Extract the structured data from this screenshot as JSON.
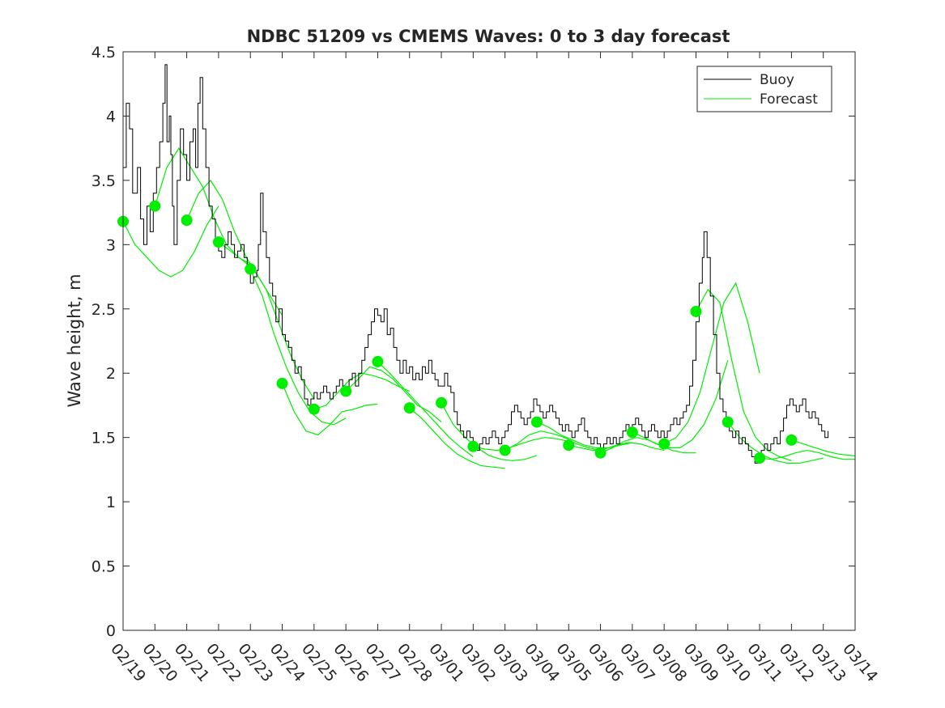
{
  "chart_data": {
    "type": "line",
    "title": "NDBC 51209 vs CMEMS Waves: 0 to 3 day forecast",
    "ylabel": "Wave height, m",
    "xlabel": "",
    "ylim": [
      0,
      4.5
    ],
    "yticks": [
      "0",
      "0.5",
      "1",
      "1.5",
      "2",
      "2.5",
      "3",
      "3.5",
      "4",
      "4.5"
    ],
    "xticks": [
      "02/19",
      "02/20",
      "02/21",
      "02/22",
      "02/23",
      "02/24",
      "02/25",
      "02/26",
      "02/27",
      "02/28",
      "03/01",
      "03/02",
      "03/03",
      "03/04",
      "03/05",
      "03/06",
      "03/07",
      "03/08",
      "03/09",
      "03/10",
      "03/11",
      "03/12",
      "03/13",
      "03/14"
    ],
    "legend": {
      "placement": "top-right",
      "entries": [
        {
          "label": "Buoy",
          "color": "#000000"
        },
        {
          "label": "Forecast",
          "color": "#00ee00"
        }
      ]
    },
    "colors": {
      "buoy": "#000000",
      "forecast": "#00ee00"
    },
    "buoy": [
      [
        0.0,
        3.6
      ],
      [
        0.1,
        4.1
      ],
      [
        0.2,
        3.9
      ],
      [
        0.3,
        3.4
      ],
      [
        0.45,
        3.6
      ],
      [
        0.55,
        3.2
      ],
      [
        0.65,
        3.0
      ],
      [
        0.75,
        3.3
      ],
      [
        0.85,
        3.1
      ],
      [
        0.95,
        3.4
      ],
      [
        1.05,
        3.6
      ],
      [
        1.15,
        3.8
      ],
      [
        1.25,
        4.1
      ],
      [
        1.32,
        4.4
      ],
      [
        1.38,
        3.8
      ],
      [
        1.45,
        4.0
      ],
      [
        1.5,
        3.7
      ],
      [
        1.55,
        3.3
      ],
      [
        1.6,
        3.0
      ],
      [
        1.7,
        3.5
      ],
      [
        1.8,
        3.9
      ],
      [
        1.9,
        3.7
      ],
      [
        2.0,
        3.5
      ],
      [
        2.1,
        3.8
      ],
      [
        2.2,
        3.9
      ],
      [
        2.28,
        3.6
      ],
      [
        2.35,
        4.1
      ],
      [
        2.42,
        4.3
      ],
      [
        2.5,
        3.9
      ],
      [
        2.6,
        3.6
      ],
      [
        2.7,
        3.3
      ],
      [
        2.8,
        3.2
      ],
      [
        2.9,
        3.0
      ],
      [
        3.0,
        2.95
      ],
      [
        3.1,
        2.9
      ],
      [
        3.2,
        3.0
      ],
      [
        3.3,
        3.1
      ],
      [
        3.4,
        3.0
      ],
      [
        3.5,
        2.9
      ],
      [
        3.6,
        2.95
      ],
      [
        3.7,
        3.0
      ],
      [
        3.8,
        2.9
      ],
      [
        3.9,
        2.8
      ],
      [
        4.0,
        2.7
      ],
      [
        4.1,
        2.75
      ],
      [
        4.2,
        2.8
      ],
      [
        4.25,
        3.0
      ],
      [
        4.32,
        3.4
      ],
      [
        4.4,
        3.1
      ],
      [
        4.5,
        2.9
      ],
      [
        4.6,
        2.7
      ],
      [
        4.7,
        2.6
      ],
      [
        4.8,
        2.4
      ],
      [
        4.9,
        2.5
      ],
      [
        5.0,
        2.3
      ],
      [
        5.1,
        2.25
      ],
      [
        5.2,
        2.2
      ],
      [
        5.3,
        2.1
      ],
      [
        5.4,
        2.0
      ],
      [
        5.5,
        2.05
      ],
      [
        5.6,
        1.95
      ],
      [
        5.7,
        1.8
      ],
      [
        5.8,
        1.75
      ],
      [
        5.9,
        1.8
      ],
      [
        6.0,
        1.85
      ],
      [
        6.1,
        1.8
      ],
      [
        6.2,
        1.85
      ],
      [
        6.3,
        1.9
      ],
      [
        6.4,
        1.85
      ],
      [
        6.5,
        1.8
      ],
      [
        6.6,
        1.85
      ],
      [
        6.7,
        1.9
      ],
      [
        6.8,
        1.95
      ],
      [
        6.9,
        1.9
      ],
      [
        7.0,
        1.85
      ],
      [
        7.1,
        1.95
      ],
      [
        7.2,
        2.0
      ],
      [
        7.3,
        1.9
      ],
      [
        7.4,
        2.0
      ],
      [
        7.5,
        2.1
      ],
      [
        7.6,
        2.2
      ],
      [
        7.7,
        2.3
      ],
      [
        7.8,
        2.4
      ],
      [
        7.9,
        2.5
      ],
      [
        8.0,
        2.45
      ],
      [
        8.1,
        2.4
      ],
      [
        8.2,
        2.5
      ],
      [
        8.3,
        2.3
      ],
      [
        8.4,
        2.35
      ],
      [
        8.5,
        2.2
      ],
      [
        8.6,
        2.1
      ],
      [
        8.7,
        2.0
      ],
      [
        8.8,
        2.1
      ],
      [
        8.9,
        2.0
      ],
      [
        9.0,
        2.05
      ],
      [
        9.1,
        1.95
      ],
      [
        9.2,
        2.0
      ],
      [
        9.3,
        1.95
      ],
      [
        9.4,
        2.05
      ],
      [
        9.5,
        2.0
      ],
      [
        9.6,
        2.1
      ],
      [
        9.7,
        2.0
      ],
      [
        9.8,
        1.95
      ],
      [
        9.9,
        1.9
      ],
      [
        10.0,
        1.9
      ],
      [
        10.1,
        2.0
      ],
      [
        10.2,
        1.9
      ],
      [
        10.3,
        1.85
      ],
      [
        10.4,
        1.7
      ],
      [
        10.5,
        1.6
      ],
      [
        10.6,
        1.55
      ],
      [
        10.7,
        1.5
      ],
      [
        10.8,
        1.55
      ],
      [
        10.9,
        1.5
      ],
      [
        11.0,
        1.45
      ],
      [
        11.1,
        1.4
      ],
      [
        11.2,
        1.45
      ],
      [
        11.3,
        1.5
      ],
      [
        11.4,
        1.45
      ],
      [
        11.5,
        1.5
      ],
      [
        11.6,
        1.55
      ],
      [
        11.7,
        1.5
      ],
      [
        11.8,
        1.45
      ],
      [
        11.9,
        1.5
      ],
      [
        12.0,
        1.55
      ],
      [
        12.1,
        1.6
      ],
      [
        12.2,
        1.7
      ],
      [
        12.3,
        1.75
      ],
      [
        12.4,
        1.7
      ],
      [
        12.5,
        1.65
      ],
      [
        12.6,
        1.6
      ],
      [
        12.7,
        1.65
      ],
      [
        12.8,
        1.7
      ],
      [
        12.9,
        1.8
      ],
      [
        13.0,
        1.75
      ],
      [
        13.1,
        1.7
      ],
      [
        13.2,
        1.65
      ],
      [
        13.3,
        1.7
      ],
      [
        13.4,
        1.75
      ],
      [
        13.5,
        1.7
      ],
      [
        13.6,
        1.65
      ],
      [
        13.7,
        1.6
      ],
      [
        13.8,
        1.55
      ],
      [
        13.9,
        1.6
      ],
      [
        14.0,
        1.55
      ],
      [
        14.1,
        1.5
      ],
      [
        14.2,
        1.55
      ],
      [
        14.3,
        1.6
      ],
      [
        14.4,
        1.65
      ],
      [
        14.5,
        1.55
      ],
      [
        14.6,
        1.5
      ],
      [
        14.7,
        1.45
      ],
      [
        14.8,
        1.5
      ],
      [
        14.9,
        1.45
      ],
      [
        15.0,
        1.4
      ],
      [
        15.1,
        1.45
      ],
      [
        15.2,
        1.5
      ],
      [
        15.3,
        1.45
      ],
      [
        15.4,
        1.5
      ],
      [
        15.5,
        1.45
      ],
      [
        15.6,
        1.5
      ],
      [
        15.7,
        1.55
      ],
      [
        15.8,
        1.6
      ],
      [
        15.9,
        1.55
      ],
      [
        16.0,
        1.6
      ],
      [
        16.1,
        1.65
      ],
      [
        16.2,
        1.6
      ],
      [
        16.3,
        1.55
      ],
      [
        16.4,
        1.5
      ],
      [
        16.5,
        1.55
      ],
      [
        16.6,
        1.6
      ],
      [
        16.7,
        1.55
      ],
      [
        16.8,
        1.5
      ],
      [
        16.9,
        1.55
      ],
      [
        17.0,
        1.5
      ],
      [
        17.1,
        1.55
      ],
      [
        17.2,
        1.6
      ],
      [
        17.3,
        1.65
      ],
      [
        17.4,
        1.6
      ],
      [
        17.5,
        1.65
      ],
      [
        17.6,
        1.7
      ],
      [
        17.7,
        1.75
      ],
      [
        17.8,
        1.9
      ],
      [
        17.9,
        2.1
      ],
      [
        18.0,
        2.4
      ],
      [
        18.1,
        2.7
      ],
      [
        18.2,
        2.9
      ],
      [
        18.25,
        3.1
      ],
      [
        18.35,
        2.9
      ],
      [
        18.45,
        2.6
      ],
      [
        18.55,
        2.3
      ],
      [
        18.65,
        2.0
      ],
      [
        18.75,
        1.8
      ],
      [
        18.85,
        1.7
      ],
      [
        18.95,
        1.6
      ],
      [
        19.05,
        1.55
      ],
      [
        19.15,
        1.5
      ],
      [
        19.25,
        1.55
      ],
      [
        19.35,
        1.45
      ],
      [
        19.45,
        1.5
      ],
      [
        19.55,
        1.45
      ],
      [
        19.65,
        1.4
      ],
      [
        19.75,
        1.35
      ],
      [
        19.85,
        1.3
      ],
      [
        19.95,
        1.35
      ],
      [
        20.05,
        1.4
      ],
      [
        20.15,
        1.45
      ],
      [
        20.25,
        1.4
      ],
      [
        20.35,
        1.45
      ],
      [
        20.45,
        1.5
      ],
      [
        20.55,
        1.45
      ],
      [
        20.65,
        1.55
      ],
      [
        20.75,
        1.65
      ],
      [
        20.85,
        1.75
      ],
      [
        20.95,
        1.8
      ],
      [
        21.05,
        1.75
      ],
      [
        21.15,
        1.7
      ],
      [
        21.25,
        1.75
      ],
      [
        21.35,
        1.8
      ],
      [
        21.45,
        1.7
      ],
      [
        21.55,
        1.65
      ],
      [
        21.65,
        1.7
      ],
      [
        21.75,
        1.65
      ],
      [
        21.85,
        1.6
      ],
      [
        21.95,
        1.55
      ],
      [
        22.05,
        1.5
      ],
      [
        22.15,
        1.55
      ]
    ],
    "forecast_runs": [
      {
        "start": 0,
        "y": [
          3.18,
          3.0,
          2.9,
          2.8,
          2.75,
          2.8,
          2.95,
          3.15,
          3.3
        ]
      },
      {
        "start": 1,
        "y": [
          3.3,
          3.6,
          3.75,
          3.6,
          3.45,
          3.2,
          3.0,
          2.9,
          2.85
        ]
      },
      {
        "start": 2,
        "y": [
          3.19,
          3.4,
          3.5,
          3.35,
          3.1,
          2.9,
          2.75,
          2.6,
          2.45
        ]
      },
      {
        "start": 3,
        "y": [
          3.02,
          2.95,
          2.88,
          2.8,
          2.65,
          2.4,
          2.15,
          1.95,
          1.8
        ]
      },
      {
        "start": 4,
        "y": [
          2.81,
          2.6,
          2.3,
          2.05,
          1.85,
          1.7,
          1.62,
          1.6,
          1.65
        ]
      },
      {
        "start": 5,
        "y": [
          1.92,
          1.7,
          1.55,
          1.52,
          1.6,
          1.7,
          1.72,
          1.75,
          1.76
        ]
      },
      {
        "start": 6,
        "y": [
          1.72,
          1.75,
          1.85,
          1.95,
          2.0,
          1.98,
          1.95,
          1.9,
          1.86
        ]
      },
      {
        "start": 7,
        "y": [
          1.86,
          1.95,
          2.05,
          2.02,
          1.95,
          1.85,
          1.75,
          1.7,
          1.62
        ]
      },
      {
        "start": 8,
        "y": [
          2.09,
          2.0,
          1.9,
          1.8,
          1.7,
          1.6,
          1.5,
          1.42,
          1.35
        ]
      },
      {
        "start": 9,
        "y": [
          1.73,
          1.65,
          1.55,
          1.45,
          1.37,
          1.32,
          1.28,
          1.27,
          1.26
        ]
      },
      {
        "start": 10,
        "y": [
          1.77,
          1.6,
          1.5,
          1.42,
          1.36,
          1.33,
          1.32,
          1.33,
          1.36
        ]
      },
      {
        "start": 11,
        "y": [
          1.43,
          1.41,
          1.4,
          1.42,
          1.45,
          1.48,
          1.5,
          1.49,
          1.47
        ]
      },
      {
        "start": 12,
        "y": [
          1.4,
          1.45,
          1.52,
          1.55,
          1.53,
          1.5,
          1.45,
          1.42,
          1.4
        ]
      },
      {
        "start": 13,
        "y": [
          1.62,
          1.58,
          1.52,
          1.48,
          1.44,
          1.42,
          1.42,
          1.44,
          1.46
        ]
      },
      {
        "start": 14,
        "y": [
          1.44,
          1.42,
          1.4,
          1.41,
          1.44,
          1.46,
          1.45,
          1.42,
          1.4
        ]
      },
      {
        "start": 15,
        "y": [
          1.38,
          1.42,
          1.47,
          1.5,
          1.48,
          1.44,
          1.4,
          1.38,
          1.38
        ]
      },
      {
        "start": 16,
        "y": [
          1.54,
          1.5,
          1.45,
          1.42,
          1.42,
          1.48,
          1.6,
          1.8,
          2.1
        ]
      },
      {
        "start": 17,
        "y": [
          1.45,
          1.5,
          1.62,
          1.85,
          2.2,
          2.55,
          2.7,
          2.4,
          2.0
        ]
      },
      {
        "start": 18,
        "y": [
          2.48,
          2.65,
          2.55,
          2.1,
          1.7,
          1.5,
          1.4,
          1.35,
          1.32
        ]
      },
      {
        "start": 19,
        "y": [
          1.62,
          1.5,
          1.42,
          1.36,
          1.32,
          1.3,
          1.3,
          1.32,
          1.34
        ]
      },
      {
        "start": 20,
        "y": [
          1.34,
          1.33,
          1.35,
          1.38,
          1.4,
          1.38,
          1.35,
          1.33,
          1.33
        ]
      },
      {
        "start": 21,
        "y": [
          1.48,
          1.45,
          1.42,
          1.39,
          1.37,
          1.36,
          1.35,
          1.35,
          1.36
        ]
      }
    ],
    "forecast_markers": [
      [
        0,
        3.18
      ],
      [
        1,
        3.3
      ],
      [
        2,
        3.19
      ],
      [
        3,
        3.02
      ],
      [
        4,
        2.81
      ],
      [
        5,
        1.92
      ],
      [
        6,
        1.72
      ],
      [
        7,
        1.86
      ],
      [
        8,
        2.09
      ],
      [
        9,
        1.73
      ],
      [
        10,
        1.77
      ],
      [
        11,
        1.43
      ],
      [
        12,
        1.4
      ],
      [
        13,
        1.62
      ],
      [
        14,
        1.44
      ],
      [
        15,
        1.38
      ],
      [
        16,
        1.54
      ],
      [
        17,
        1.45
      ],
      [
        18,
        2.48
      ],
      [
        19,
        1.62
      ],
      [
        20,
        1.34
      ],
      [
        21,
        1.48
      ]
    ],
    "grid": false
  }
}
